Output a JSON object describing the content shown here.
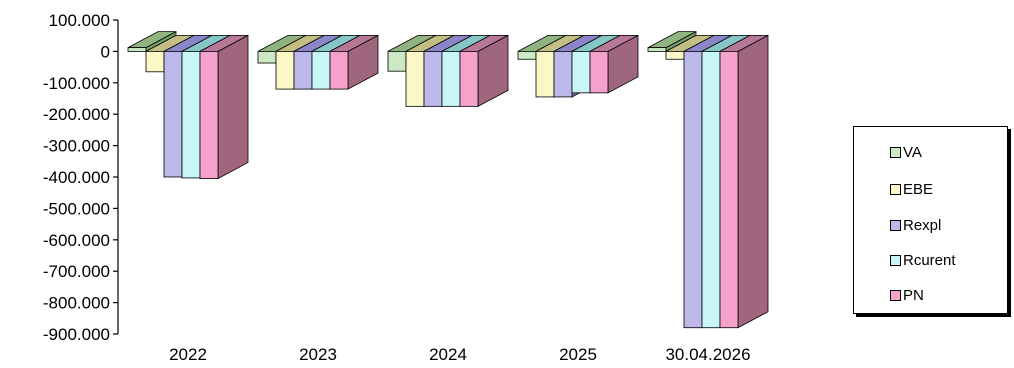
{
  "chart_data": {
    "type": "bar",
    "categories": [
      "2022",
      "2023",
      "2024",
      "2025",
      "30.04.2026"
    ],
    "series": [
      {
        "name": "VA",
        "values": [
          12000,
          -37000,
          -63000,
          -25000,
          12000
        ]
      },
      {
        "name": "EBE",
        "values": [
          -65000,
          -120000,
          -175000,
          -145000,
          -25000
        ]
      },
      {
        "name": "Rexpl",
        "values": [
          -400000,
          -120000,
          -175000,
          -145000,
          -880000
        ]
      },
      {
        "name": "Rcurent",
        "values": [
          -403000,
          -120000,
          -175000,
          -132000,
          -880000
        ]
      },
      {
        "name": "PN",
        "values": [
          -405000,
          -120000,
          -175000,
          -132000,
          -880000
        ]
      }
    ],
    "yticks": [
      "100.000",
      "0",
      "-100.000",
      "-200.000",
      "-300.000",
      "-400.000",
      "-500.000",
      "-600.000",
      "-700.000",
      "-800.000",
      "-900.000"
    ],
    "ylim": [
      -900000,
      100000
    ],
    "legend_position": "right",
    "colors": {
      "VA": {
        "front": "#cce8c4",
        "top": "#8fb47f",
        "side": "#76a06a"
      },
      "EBE": {
        "front": "#fbf7c6",
        "top": "#c4be84",
        "side": "#aba666"
      },
      "Rexpl": {
        "front": "#bcb8ea",
        "top": "#8a86c8",
        "side": "#7470b4"
      },
      "Rcurent": {
        "front": "#c8f6f6",
        "top": "#86c6c6",
        "side": "#6aaeae"
      },
      "PN": {
        "front": "#f6a0cc",
        "top": "#b77898",
        "side": "#a0667e"
      }
    }
  }
}
